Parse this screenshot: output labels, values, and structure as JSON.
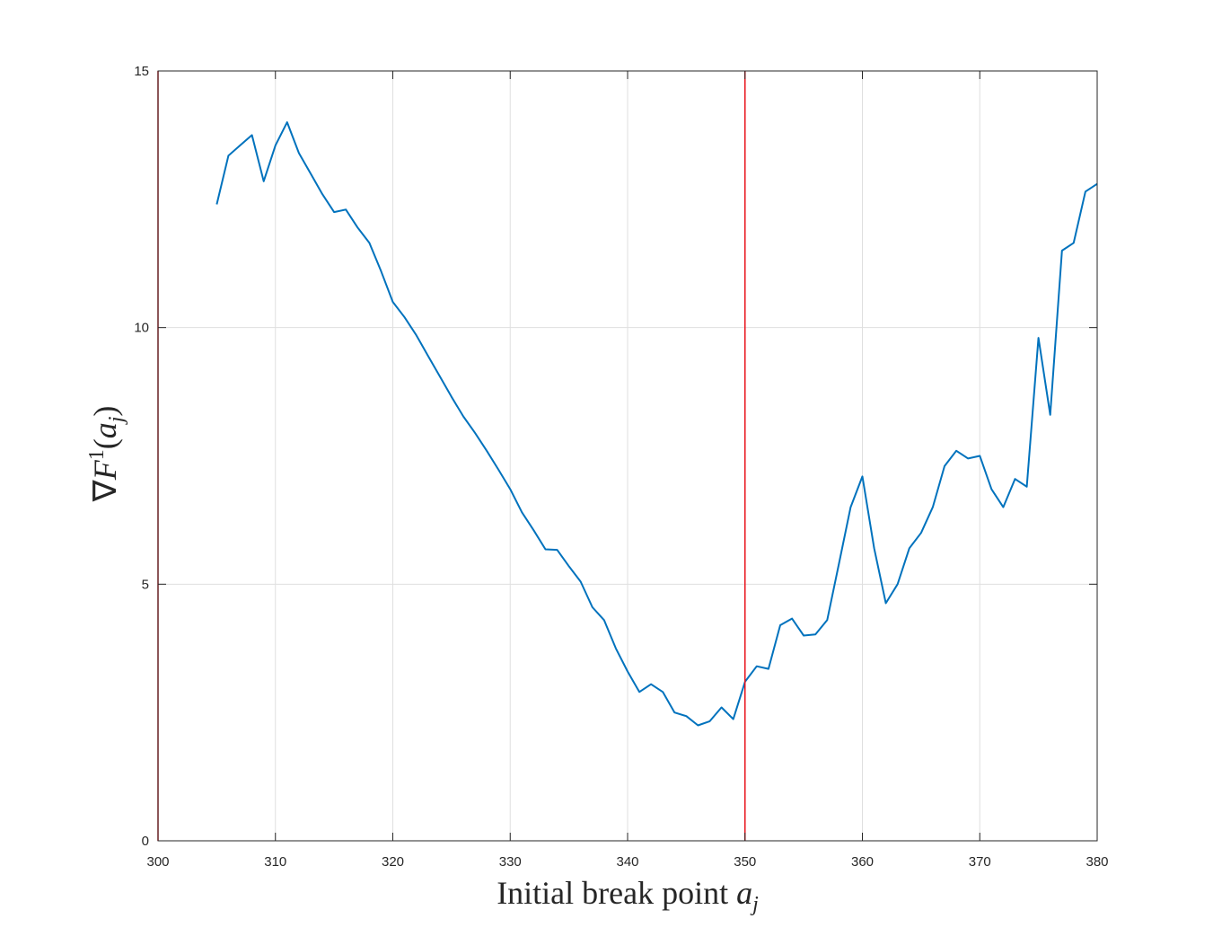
{
  "chart_data": {
    "type": "line",
    "xlabel": "Initial break point a_j",
    "xlabel_text": "Initial break point ",
    "xlabel_var": "a",
    "xlabel_sub": "j",
    "ylabel": "∇F^1(a_j)",
    "ylabel_parts": {
      "nabla": "∇",
      "F": "F",
      "sup": "1",
      "open": "(",
      "a": "a",
      "sub": "j",
      "close": ")"
    },
    "xlim": [
      300,
      380
    ],
    "ylim": [
      0,
      15
    ],
    "xticks": [
      300,
      310,
      320,
      330,
      340,
      350,
      360,
      370,
      380
    ],
    "yticks": [
      0,
      5,
      10,
      15
    ],
    "grid": true,
    "line_color": "#0072BD",
    "vline_color": "#E8121B",
    "vlines": [
      300,
      350
    ],
    "series": [
      {
        "x": [
          305,
          306,
          307,
          308,
          309,
          310,
          311,
          312,
          313,
          314,
          315,
          316,
          317,
          318,
          319,
          320,
          321,
          322,
          323,
          324,
          325,
          326,
          327,
          328,
          329,
          330,
          331,
          332,
          333,
          334,
          335,
          336,
          337,
          338,
          339,
          340,
          341,
          342,
          343,
          344,
          345,
          346,
          347,
          348,
          349,
          350,
          351,
          352,
          353,
          354,
          355,
          356,
          357,
          358,
          359,
          360,
          361,
          362,
          363,
          364,
          365,
          366,
          367,
          368,
          369,
          370,
          371,
          372,
          373,
          374,
          375,
          376,
          377,
          378,
          379,
          380
        ],
        "values": [
          12.4,
          13.35,
          13.55,
          13.75,
          12.85,
          13.55,
          14.0,
          13.4,
          13.0,
          12.6,
          12.25,
          12.3,
          11.95,
          11.65,
          11.1,
          10.5,
          10.2,
          9.85,
          9.45,
          9.05,
          8.65,
          8.27,
          7.95,
          7.6,
          7.23,
          6.85,
          6.4,
          6.05,
          5.68,
          5.67,
          5.35,
          5.05,
          4.55,
          4.3,
          3.75,
          3.3,
          2.9,
          3.05,
          2.9,
          2.5,
          2.43,
          2.25,
          2.33,
          2.6,
          2.37,
          3.1,
          3.4,
          3.35,
          4.2,
          4.33,
          4.0,
          4.02,
          4.3,
          5.4,
          6.5,
          7.1,
          5.7,
          4.63,
          5.0,
          5.7,
          6.0,
          6.5,
          7.3,
          7.6,
          7.45,
          7.5,
          6.85,
          6.5,
          7.05,
          6.9,
          9.8,
          8.3,
          11.5,
          11.65,
          12.65,
          12.8
        ]
      }
    ]
  }
}
